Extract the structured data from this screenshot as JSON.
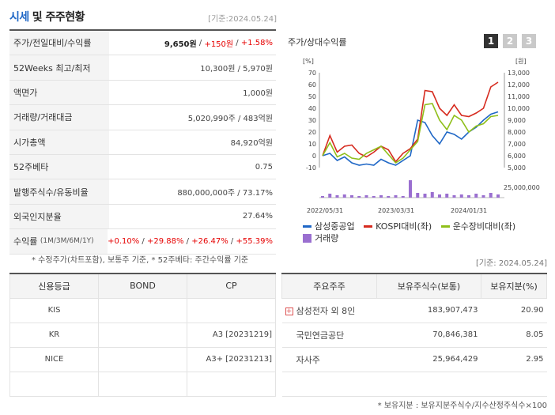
{
  "header": {
    "title_accent": "시세",
    "title_rest": "및 주주현황",
    "date": "[기준:2024.05.24]"
  },
  "info": {
    "price_label": "주가/전일대비/수익률",
    "price": "9,650원",
    "change": "+150원",
    "rate": "+1.58%",
    "w52_label": "52Weeks 최고/최저",
    "w52": "10,300원 / 5,970원",
    "face_label": "액면가",
    "face": "1,000원",
    "volume_label": "거래량/거래대금",
    "volume": "5,020,990주 / 483억원",
    "cap_label": "시가총액",
    "cap": "84,920억원",
    "beta_label": "52주베타",
    "beta": "0.75",
    "shares_label": "발행주식수/유동비율",
    "shares": "880,000,000주 / 73.17%",
    "foreign_label": "외국인지분율",
    "foreign": "27.64%",
    "return_label": "수익률",
    "return_period": "(1M/3M/6M/1Y)",
    "r1": "+0.10%",
    "r3": "+29.88%",
    "r6": "+26.47%",
    "r12": "+55.39%"
  },
  "note": "* 수정주가(차트포함), 보통주 기준, * 52주베타: 주간수익률 기준",
  "chart": {
    "title": "주가/상대수익률",
    "tabs": [
      "1",
      "2",
      "3"
    ],
    "left_unit": "[%]",
    "right_unit": "[원]",
    "left_ticks": [
      "70",
      "60",
      "50",
      "40",
      "30",
      "20",
      "10",
      "0",
      "-10"
    ],
    "right_ticks": [
      "13,000",
      "12,000",
      "11,000",
      "10,000",
      "9,000",
      "8,000",
      "7,000",
      "6,000",
      "5,000"
    ],
    "volume_tick": "25,000,000",
    "x_ticks": [
      "2022/05/31",
      "2023/03/31",
      "2024/01/31"
    ]
  },
  "chart_data": {
    "type": "line",
    "x": [
      0,
      1,
      2,
      3,
      4,
      5,
      6,
      7,
      8,
      9,
      10,
      11,
      12,
      13,
      14,
      15,
      16,
      17,
      18,
      19,
      20,
      21,
      22,
      23,
      24
    ],
    "ylim": [
      -10,
      70
    ],
    "series": [
      {
        "name": "삼성중공업",
        "color": "#1f67c6",
        "values": [
          0,
          2,
          -4,
          -1,
          -6,
          -8,
          -7,
          -8,
          -3,
          -6,
          -8,
          -4,
          0,
          30,
          28,
          17,
          10,
          20,
          18,
          14,
          20,
          24,
          30,
          35,
          37
        ]
      },
      {
        "name": "KOSPI대비(좌)",
        "color": "#d62b1f",
        "values": [
          0,
          17,
          3,
          8,
          9,
          2,
          -1,
          3,
          8,
          5,
          -5,
          2,
          6,
          14,
          55,
          54,
          40,
          34,
          43,
          34,
          33,
          36,
          40,
          58,
          62
        ]
      },
      {
        "name": "운수장비대비(좌)",
        "color": "#8fbf1a",
        "values": [
          0,
          11,
          -1,
          2,
          -2,
          -3,
          2,
          5,
          8,
          1,
          -6,
          -2,
          5,
          12,
          43,
          44,
          30,
          22,
          34,
          30,
          20,
          25,
          27,
          33,
          34
        ]
      }
    ],
    "volume": {
      "name": "거래량",
      "color": "#9a6fd0",
      "values": [
        2,
        5,
        3,
        4,
        3,
        2,
        3,
        2,
        3,
        2,
        3,
        2,
        22,
        6,
        5,
        7,
        4,
        5,
        3,
        4,
        3,
        5,
        3,
        6,
        4
      ]
    }
  },
  "legend_items": [
    "삼성중공업",
    "KOSPI대비(좌)",
    "운수장비대비(좌)",
    "거래량"
  ],
  "date2": "[기준: 2024.05.24]",
  "credit": {
    "headers": [
      "신용등급",
      "BOND",
      "CP"
    ],
    "rows": [
      {
        "agency": "KIS",
        "bond": "",
        "cp": ""
      },
      {
        "agency": "KR",
        "bond": "",
        "cp": "A3 [20231219]"
      },
      {
        "agency": "NICE",
        "bond": "",
        "cp": "A3+ [20231213]"
      },
      {
        "agency": "",
        "bond": "",
        "cp": ""
      }
    ]
  },
  "holders": {
    "headers": [
      "주요주주",
      "보유주식수(보통)",
      "보유지분(%)"
    ],
    "rows": [
      {
        "name": "삼성전자 외 8인",
        "shares": "183,907,473",
        "pct": "20.90"
      },
      {
        "name": "국민연금공단",
        "shares": "70,846,381",
        "pct": "8.05"
      },
      {
        "name": "자사주",
        "shares": "25,964,429",
        "pct": "2.95"
      }
    ]
  },
  "footnote": "* 보유지분 : 보유지분주식수/지수산정주식수×100"
}
